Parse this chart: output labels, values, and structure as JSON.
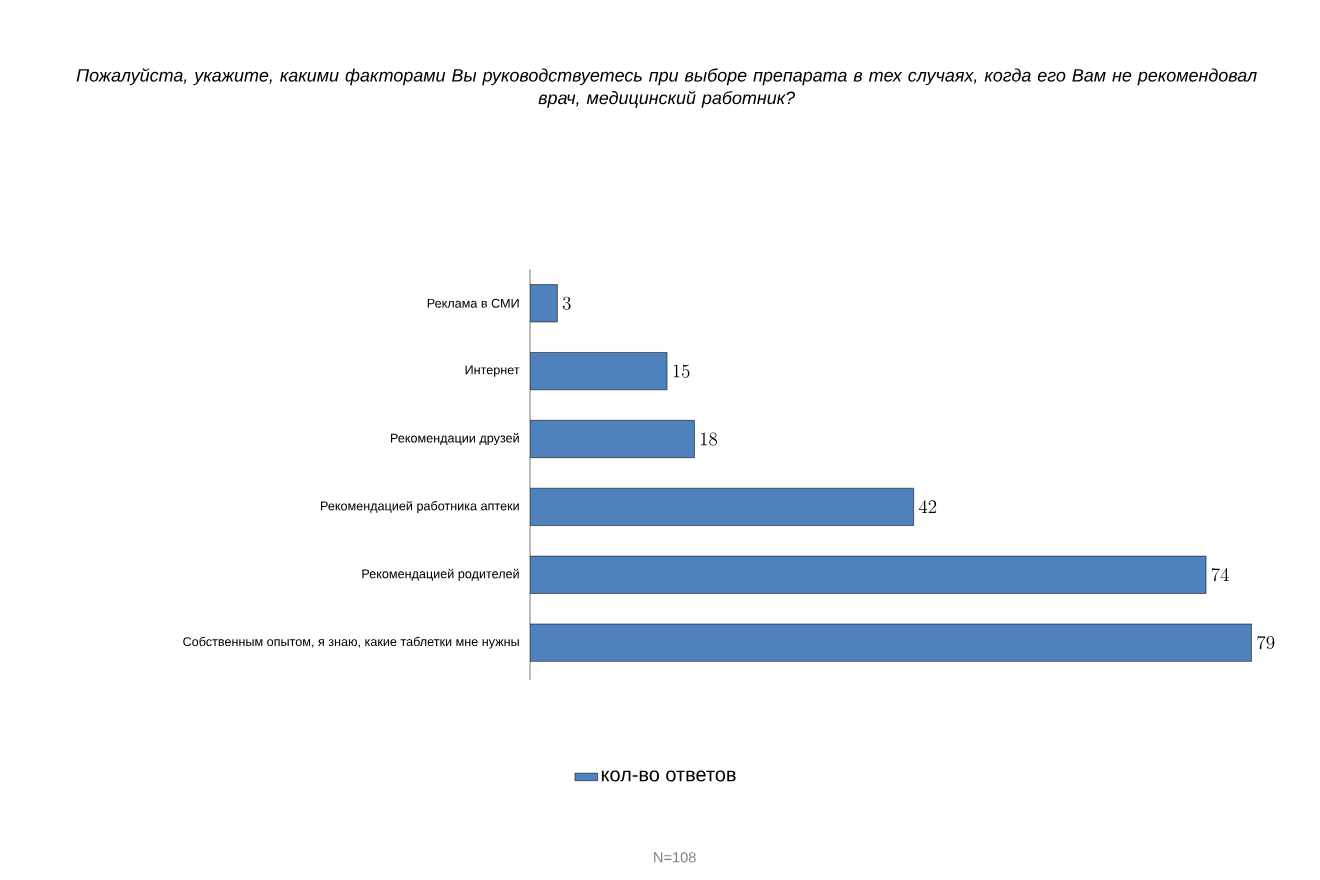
{
  "chart_data": {
    "type": "bar",
    "orientation": "horizontal",
    "title": "Пожалуйста, укажите, какими факторами Вы руководствуетесь при выборе препарата в тех случаях, когда его Вам не рекомендовал врач, медицинский работник?",
    "categories": [
      "Реклама в СМИ",
      "Интернет",
      "Рекомендации друзей",
      "Рекомендацией работника  аптеки",
      "Рекомендацией родителей",
      "Собственным опытом, я знаю, какие таблетки мне нужны"
    ],
    "series": [
      {
        "name": "кол-во ответов",
        "color": "#4f81bd",
        "values": [
          3,
          15,
          18,
          42,
          74,
          79
        ]
      }
    ],
    "data_labels": true,
    "legend": "bottom",
    "annotations": [
      "N=108"
    ]
  }
}
